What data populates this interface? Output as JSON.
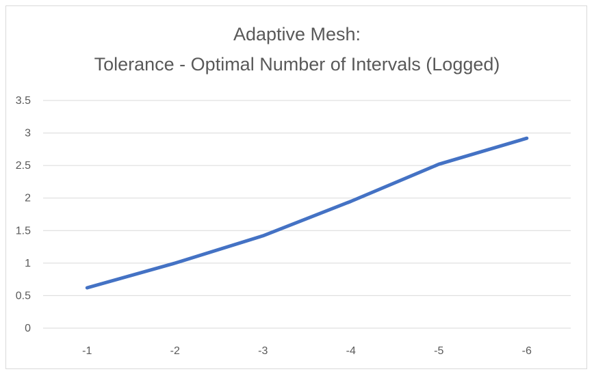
{
  "chart_data": {
    "type": "line",
    "title": "Adaptive Mesh:",
    "subtitle": "Tolerance - Optimal Number of Intervals (Logged)",
    "xlabel": "",
    "ylabel": "",
    "categories": [
      "-1",
      "-2",
      "-3",
      "-4",
      "-5",
      "-6"
    ],
    "series": [
      {
        "values": [
          0.62,
          1.0,
          1.42,
          1.95,
          2.52,
          2.92
        ]
      }
    ],
    "ylim": [
      0,
      3.5
    ],
    "yticks": [
      "0",
      "0.5",
      "1",
      "1.5",
      "2",
      "2.5",
      "3",
      "3.5"
    ],
    "grid": true,
    "legend": "none",
    "colors": {
      "line": "#4472C4",
      "grid": "#d9d9d9",
      "text": "#595959"
    }
  }
}
